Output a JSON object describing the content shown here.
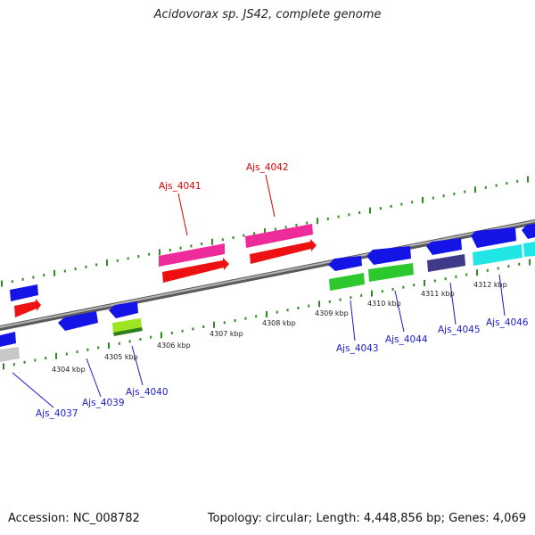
{
  "title": "Acidovorax sp. JS42, complete genome",
  "footer": {
    "accession": "Accession: NC_008782",
    "summary": "Topology: circular; Length: 4,448,856 bp; Genes: 4,069"
  },
  "colors": {
    "backbone": "#8c8c8c",
    "ticks": "#2e8b22",
    "forward_label": "#dd0000",
    "reverse_label": "#1a1acc"
  },
  "scale_labels": [
    "4304 kbp",
    "4305 kbp",
    "4306 kbp",
    "4307 kbp",
    "4308 kbp",
    "4309 kbp",
    "4310 kbp",
    "4311 kbp",
    "4312 kbp"
  ],
  "genes": [
    {
      "name": "Ajs_4037",
      "strand": "reverse",
      "color": "#c8c8c8"
    },
    {
      "name": "Ajs_4039",
      "strand": "reverse",
      "color": "#1414e6"
    },
    {
      "name": "Ajs_4040",
      "strand": "reverse",
      "color": "#9be620"
    },
    {
      "name": "Ajs_4041",
      "strand": "forward",
      "color": "#ee1111"
    },
    {
      "name": "Ajs_4042",
      "strand": "forward",
      "color": "#ee1111"
    },
    {
      "name": "Ajs_4043",
      "strand": "reverse",
      "color": "#2dc82d"
    },
    {
      "name": "Ajs_4044",
      "strand": "reverse",
      "color": "#2dc82d"
    },
    {
      "name": "Ajs_4045",
      "strand": "reverse",
      "color": "#3f3a88"
    },
    {
      "name": "Ajs_4046",
      "strand": "reverse",
      "color": "#22e6e6"
    }
  ]
}
